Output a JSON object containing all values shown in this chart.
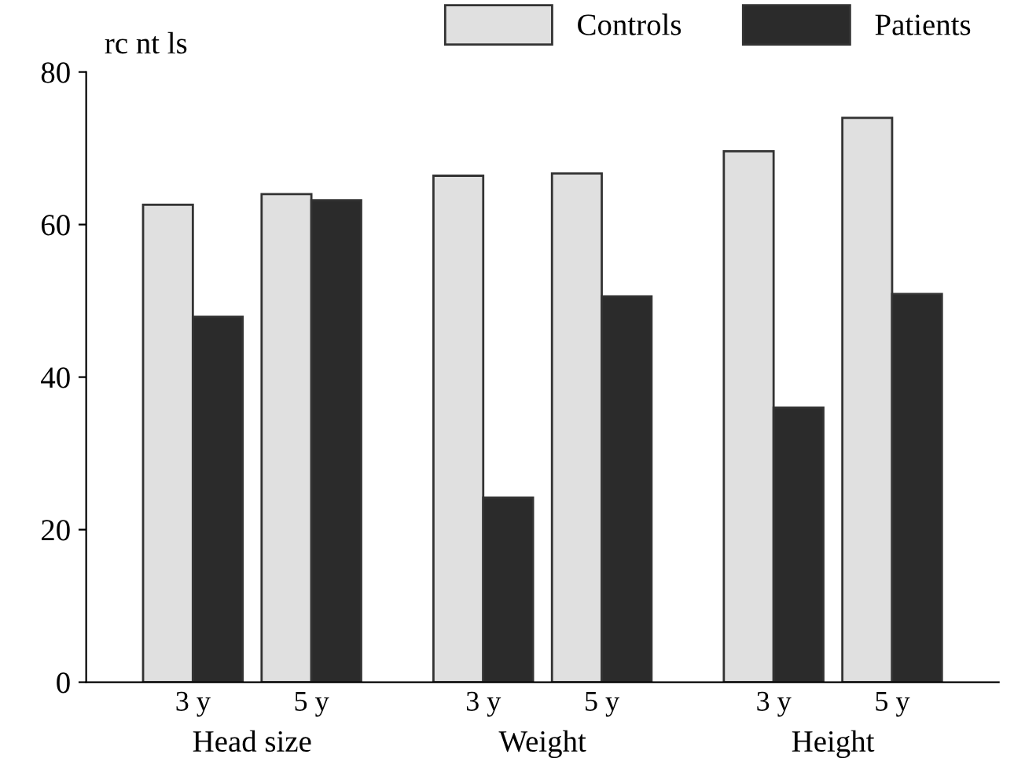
{
  "chart_data": {
    "type": "bar",
    "ylabel": "rc nt ls",
    "categories": [
      "3 y",
      "5 y",
      "3 y",
      "5 y",
      "3 y",
      "5 y"
    ],
    "annotations": [
      "Head size",
      "Weight",
      "Height"
    ],
    "series": [
      {
        "name": "Controls",
        "color": "#e0e0e0",
        "values": [
          62.6,
          64.0,
          66.4,
          66.7,
          69.6,
          74.0
        ]
      },
      {
        "name": "Patients",
        "color": "#2b2b2b",
        "values": [
          47.9,
          63.2,
          24.2,
          50.6,
          36.0,
          50.9
        ]
      }
    ],
    "ylim": [
      0,
      80
    ],
    "yticks": [
      0,
      20,
      40,
      60,
      80
    ],
    "grid": false,
    "legend": "top right"
  }
}
